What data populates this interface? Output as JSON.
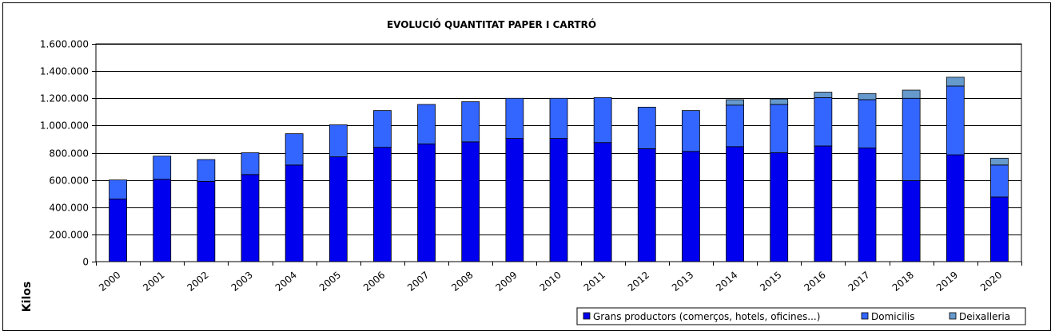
{
  "chart_data": {
    "type": "bar",
    "stacked": true,
    "title": "EVOLUCIÓ  QUANTITAT  PAPER  I  CARTRÓ",
    "xlabel": "",
    "ylabel": "Kilos",
    "ylim": [
      0,
      1600000
    ],
    "y_ticks": [
      0,
      200000,
      400000,
      600000,
      800000,
      1000000,
      1200000,
      1400000,
      1600000
    ],
    "y_tick_labels": [
      "0",
      "200.000",
      "400.000",
      "600.000",
      "800.000",
      "1.000.000",
      "1.200.000",
      "1.400.000",
      "1.600.000"
    ],
    "grid": true,
    "legend_position": "bottom-right",
    "categories": [
      "2000",
      "2001",
      "2002",
      "2003",
      "2004",
      "2005",
      "2006",
      "2007",
      "2008",
      "2009",
      "2010",
      "2011",
      "2012",
      "2013",
      "2014",
      "2015",
      "2016",
      "2017",
      "2018",
      "2019",
      "2020"
    ],
    "series": [
      {
        "name": "Grans productors (comerços, hotels, oficines...)",
        "color": "#0000ee",
        "values": [
          460000,
          605000,
          590000,
          640000,
          710000,
          770000,
          840000,
          865000,
          880000,
          905000,
          905000,
          875000,
          830000,
          810000,
          845000,
          800000,
          850000,
          835000,
          595000,
          785000,
          475000
        ]
      },
      {
        "name": "Domicilis",
        "color": "#3366ff",
        "values": [
          140000,
          170000,
          160000,
          160000,
          230000,
          235000,
          270000,
          290000,
          295000,
          295000,
          295000,
          330000,
          305000,
          300000,
          305000,
          355000,
          355000,
          355000,
          605000,
          505000,
          235000
        ]
      },
      {
        "name": "Deixalleria",
        "color": "#6699cc",
        "values": [
          0,
          0,
          0,
          0,
          0,
          0,
          0,
          0,
          0,
          0,
          0,
          0,
          0,
          0,
          40000,
          40000,
          40000,
          45000,
          60000,
          65000,
          50000
        ]
      }
    ]
  }
}
